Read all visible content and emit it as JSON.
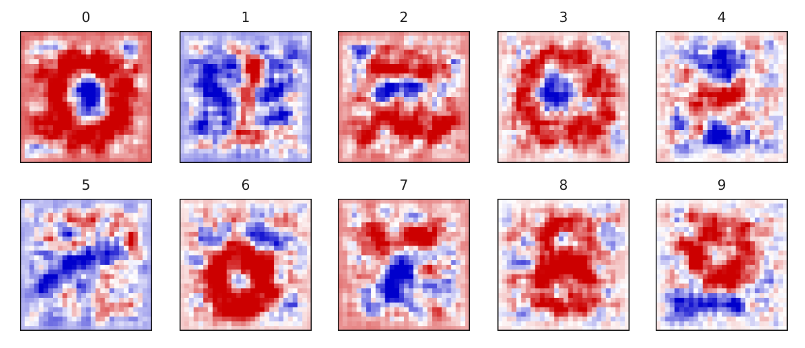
{
  "chart_data": {
    "type": "heatmap",
    "colormap": "seismic",
    "colors": {
      "negative": "#0000cc",
      "positive": "#cc0000",
      "neutral": "#ffffff"
    },
    "layout": {
      "rows": 2,
      "cols": 5
    },
    "axes_visible": false,
    "panels": [
      {
        "title": "0",
        "background": 0.55
      },
      {
        "title": "1",
        "background": -0.3
      },
      {
        "title": "2",
        "background": 0.4
      },
      {
        "title": "3",
        "background": 0.12
      },
      {
        "title": "4",
        "background": 0.06
      },
      {
        "title": "5",
        "background": -0.25
      },
      {
        "title": "6",
        "background": 0.15
      },
      {
        "title": "7",
        "background": 0.4
      },
      {
        "title": "8",
        "background": 0.04
      },
      {
        "title": "9",
        "background": 0.03
      }
    ]
  }
}
